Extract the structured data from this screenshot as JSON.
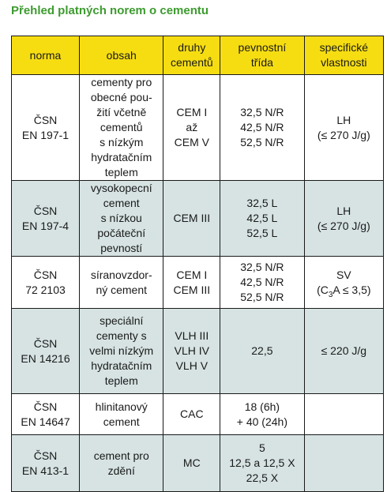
{
  "title": "Přehled platných norem o cementu",
  "headers": [
    "norma",
    "obsah",
    "druhy\ncementů",
    "pevnostní\ntřída",
    "specifické\nvlastnosti"
  ],
  "rows": [
    {
      "norma": "ČSN\nEN 197-1",
      "obsah": "cementy pro\nobecné pou-\nžití včetně\ncementů\ns nízkým\nhydratačním\nteplem",
      "druhy": "CEM I\naž\nCEM V",
      "trida": "32,5 N/R\n42,5 N/R\n52,5 N/R",
      "vlastnosti": "LH\n(≤ 270 J/g)"
    },
    {
      "norma": "ČSN\nEN 197-4",
      "obsah": "vysokopecní\ncement\ns nízkou\npočáteční\npevností",
      "druhy": "CEM III",
      "trida": "32,5 L\n42,5 L\n52,5 L",
      "vlastnosti": "LH\n(≤ 270 J/g)"
    },
    {
      "norma": "ČSN\n72 2103",
      "obsah": "síranovzdor-\nný cement",
      "druhy": "CEM I\nCEM III",
      "trida": "32,5 N/R\n42,5 N/R\n52,5 N/R",
      "vlastnosti_line1": "SV",
      "vlastnosti_pre": "(C",
      "vlastnosti_sub": "3",
      "vlastnosti_post": "A ≤ 3,5)"
    },
    {
      "norma": "ČSN\nEN 14216",
      "obsah": "speciální\ncementy s\nvelmi nízkým\nhydratačním\nteplem",
      "druhy": "VLH III\nVLH IV\nVLH V",
      "trida": "22,5",
      "vlastnosti": "≤ 220 J/g"
    },
    {
      "norma": "ČSN\nEN 14647",
      "obsah": "hlinitanový\ncement",
      "druhy": "CAC",
      "trida": "18 (6h)\n+ 40 (24h)",
      "vlastnosti": ""
    },
    {
      "norma": "ČSN\nEN 413-1",
      "obsah": "cement pro\nzdění",
      "druhy": "MC",
      "trida": "5\n12,5 a 12,5 X\n22,5 X",
      "vlastnosti": ""
    }
  ],
  "colors": {
    "title": "#3d9b2f",
    "header_bg": "#f6dd12",
    "shaded_row_bg": "#d6e3e2",
    "border": "#1a1a1a"
  }
}
